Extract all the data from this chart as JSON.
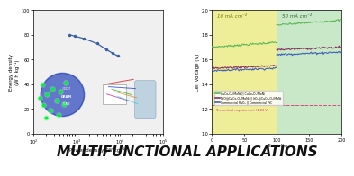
{
  "left_plot": {
    "xlabel": "Power density (W kg⁻¹)",
    "ylabel": "Energy density\n(W h kg⁻¹)",
    "xlim_log": [
      100,
      100000
    ],
    "ylim": [
      0,
      100
    ],
    "ragone_x": [
      700,
      900,
      1500,
      3000,
      5000,
      7000,
      9000
    ],
    "ragone_y": [
      80,
      79,
      77,
      73,
      68,
      65,
      63
    ],
    "line_color": "#3a5fa0",
    "marker_color": "#3a5fa0",
    "bg_color": "#f0f0f0",
    "yticks": [
      0,
      20,
      40,
      60,
      80,
      100
    ],
    "photo_left_bg": "#0d1a6b",
    "photo_right_bg": "#b8a888"
  },
  "right_plot": {
    "xlabel": "Time (h)",
    "ylabel": "Cell voltage (V)",
    "xlim": [
      0,
      200
    ],
    "ylim": [
      1.0,
      2.0
    ],
    "yticks": [
      1.0,
      1.2,
      1.4,
      1.6,
      1.8,
      2.0
    ],
    "xticks": [
      0,
      50,
      100,
      150,
      200
    ],
    "bg_yellow": "#eeee99",
    "bg_green": "#c8e8c8",
    "split_x": 100,
    "label_10": "10 mA cm⁻²",
    "label_50": "50 mA cm⁻²",
    "theoretical_y": 1.23,
    "theoretical_label": "Theoretical requirement (1.23 V)",
    "lines": [
      {
        "label": "CuCo₂O₄/MoNi || CuCo₂O₄/MoNi",
        "color": "#5ab85a",
        "y_left_start": 1.7,
        "y_left_end": 1.74,
        "y_right_start": 1.88,
        "y_right_end": 1.92
      },
      {
        "label": "NiO@CuCo₂O₄/MoNi || IrO₂@CuCo₂O₄/MoNi",
        "color": "#8b3060",
        "y_left_start": 1.53,
        "y_left_end": 1.55,
        "y_right_start": 1.68,
        "y_right_end": 1.7
      },
      {
        "label": "Commercial RuO₂ || Commercial PtC",
        "color": "#4060b8",
        "y_left_start": 1.51,
        "y_left_end": 1.53,
        "y_right_start": 1.64,
        "y_right_end": 1.66
      }
    ]
  },
  "footer_text": "MULTIFUNCTIONAL APPLICATIONS",
  "footer_color": "#111111",
  "footer_fontsize": 11
}
